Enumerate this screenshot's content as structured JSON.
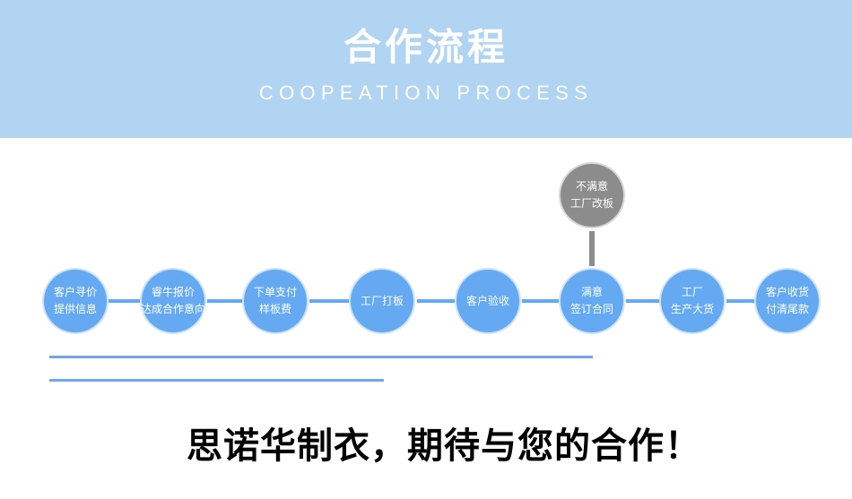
{
  "header": {
    "title": "合作流程",
    "subtitle": "COOPEATION PROCESS"
  },
  "colors": {
    "header_bg": "#b0d4f1",
    "step_blue": "#64a9f2",
    "alt_gray": "#8c8c8c"
  },
  "steps": [
    {
      "line1": "客户寻价",
      "line2": "提供信息"
    },
    {
      "line1": "睿牛报价",
      "line2": "达成合作意向"
    },
    {
      "line1": "下单支付",
      "line2": "样板费"
    },
    {
      "line1": "工厂打板",
      "line2": ""
    },
    {
      "line1": "客户验收",
      "line2": ""
    },
    {
      "line1": "满意",
      "line2": "签订合同"
    },
    {
      "line1": "工厂",
      "line2": "生产大货"
    },
    {
      "line1": "客户收货",
      "line2": "付清尾款"
    }
  ],
  "alt_step": {
    "line1": "不满意",
    "line2": "工厂改板"
  },
  "slogan": "思诺华制衣，期待与您的合作！"
}
